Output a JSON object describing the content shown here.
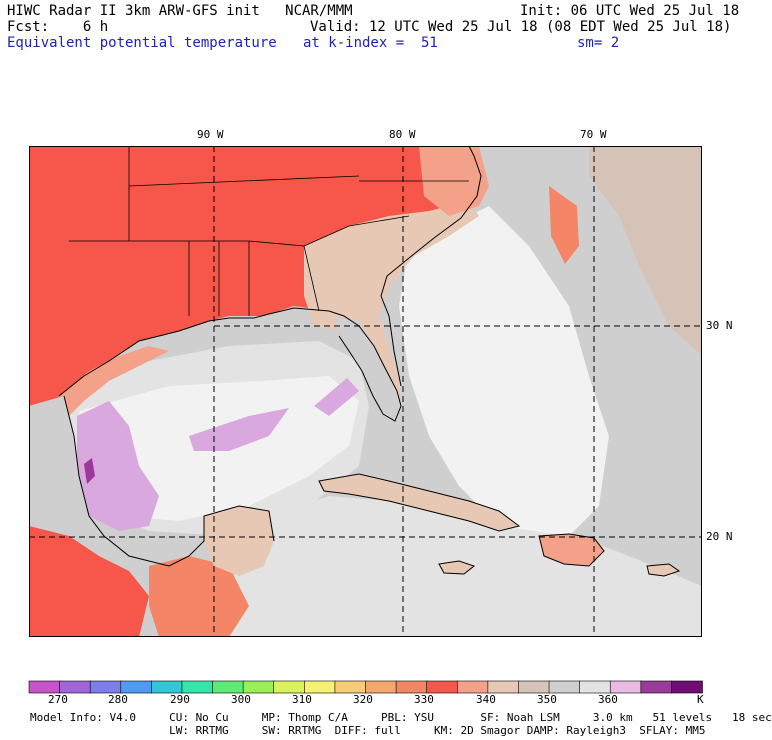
{
  "header": {
    "line1_left": "HIWC Radar II 3km ARW-GFS init   NCAR/MMM",
    "line1_right": "Init: 06 UTC Wed 25 Jul 18",
    "line2_left": "Fcst:    6 h",
    "line2_right": "Valid: 12 UTC Wed 25 Jul 18 (08 EDT Wed 25 Jul 18)",
    "line3_left": "Equivalent potential temperature",
    "line3_mid": "at k-index =  51",
    "line3_right": "sm= 2"
  },
  "map": {
    "lon_labels": [
      "90 W",
      "80 W",
      "70 W"
    ],
    "lat_labels": [
      "30 N",
      "20 N"
    ],
    "colors": {
      "hot": "#f7574a",
      "warm": "#f48567",
      "salmon": "#f4a18a",
      "tan": "#e7c8b4",
      "taupe": "#d6c3b8",
      "gray": "#cfcfcf",
      "lightgray": "#e3e3e3",
      "white": "#f2f2f2",
      "lavender": "#d8a8de",
      "purple": "#9a3a9b"
    }
  },
  "colorbar": {
    "unit": "K",
    "labels": [
      "270",
      "280",
      "290",
      "300",
      "310",
      "320",
      "330",
      "340",
      "350",
      "360"
    ],
    "colors": [
      "#c455c7",
      "#a066d7",
      "#7e7ee8",
      "#4f9bef",
      "#2fc9d6",
      "#32e8a8",
      "#5cec74",
      "#9aef56",
      "#dbf35a",
      "#f6f16e",
      "#f6cc78",
      "#f4a870",
      "#f48567",
      "#f7574a",
      "#f4a18a",
      "#e7c8b4",
      "#d6c3b8",
      "#cfcfcf",
      "#e3e3e3",
      "#eab9e4",
      "#9a3a9b",
      "#6e0d72"
    ]
  },
  "footer": {
    "line1": "Model Info: V4.0     CU: No Cu     MP: Thomp C/A     PBL: YSU       SF: Noah LSM     3.0 km   51 levels   18 sec",
    "line2": "                     LW: RRTMG     SW: RRTMG  DIFF: full     KM: 2D Smagor DAMP: Rayleigh3  SFLAY: MM5"
  }
}
